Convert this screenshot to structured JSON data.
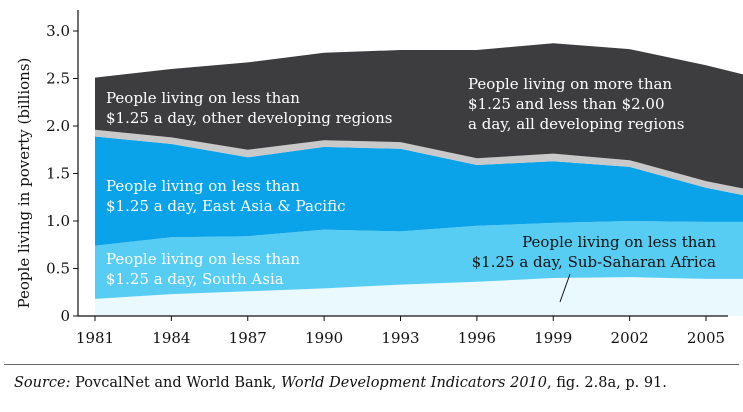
{
  "chart_data": {
    "type": "area",
    "stacked": true,
    "ylabel": "People living in poverty (billions)",
    "xlabel": "",
    "ylim": [
      0,
      3.25
    ],
    "xlim": [
      1981,
      2006.5
    ],
    "yticks": [
      "0",
      "0.5",
      "1.0",
      "1.5",
      "2.0",
      "2.5",
      "3.0"
    ],
    "ytick_values": [
      0,
      0.5,
      1.0,
      1.5,
      2.0,
      2.5,
      3.0
    ],
    "xticks": [
      "1981",
      "1984",
      "1987",
      "1990",
      "1993",
      "1996",
      "1999",
      "2002",
      "2005"
    ],
    "xtick_values": [
      1981,
      1984,
      1987,
      1990,
      1993,
      1996,
      1999,
      2002,
      2005
    ],
    "x": [
      1981,
      1984,
      1987,
      1990,
      1993,
      1996,
      1999,
      2002,
      2005,
      2006.5
    ],
    "series": [
      {
        "key": "ssa",
        "color": "#e9f9fe",
        "values": [
          0.18,
          0.23,
          0.26,
          0.29,
          0.33,
          0.36,
          0.4,
          0.41,
          0.39,
          0.39
        ]
      },
      {
        "key": "south_asia",
        "color": "#58cdf4",
        "values": [
          0.56,
          0.6,
          0.58,
          0.62,
          0.56,
          0.59,
          0.58,
          0.59,
          0.6,
          0.6
        ]
      },
      {
        "key": "east_asia",
        "color": "#0aa2e8",
        "values": [
          1.15,
          0.98,
          0.83,
          0.87,
          0.87,
          0.64,
          0.65,
          0.57,
          0.36,
          0.28
        ]
      },
      {
        "key": "other_regions",
        "color": "#c9c9c9",
        "values": [
          0.07,
          0.07,
          0.08,
          0.07,
          0.07,
          0.07,
          0.08,
          0.07,
          0.07,
          0.07
        ]
      },
      {
        "key": "between_125_200",
        "color": "#3d3d3f",
        "values": [
          0.55,
          0.72,
          0.92,
          0.92,
          0.97,
          1.14,
          1.16,
          1.17,
          1.22,
          1.2
        ]
      }
    ],
    "annotations": [
      {
        "target": "other_regions",
        "lines": [
          "People living on less than",
          "$1.25 a day, other developing regions"
        ],
        "color": "#ffffff"
      },
      {
        "target": "between_125_200",
        "lines": [
          "People living on more than",
          "$1.25 and less than $2.00",
          "a day, all developing regions"
        ],
        "color": "#ffffff"
      },
      {
        "target": "east_asia",
        "lines": [
          "People living on less than",
          "$1.25 a day, East Asia & Pacific"
        ],
        "color": "#ffffff"
      },
      {
        "target": "south_asia",
        "lines": [
          "People living on less than",
          "$1.25 a day, South Asia"
        ],
        "color": "#ffffff"
      },
      {
        "target": "ssa",
        "lines": [
          "People living on less than",
          "$1.25 a day, Sub-Saharan Africa"
        ],
        "color": "#111111"
      }
    ]
  },
  "source": {
    "label": "Source:",
    "text_before": " PovcalNet and World Bank, ",
    "publication": "World Development Indicators 2010",
    "text_after": ", fig. 2.8a, p. 91."
  }
}
